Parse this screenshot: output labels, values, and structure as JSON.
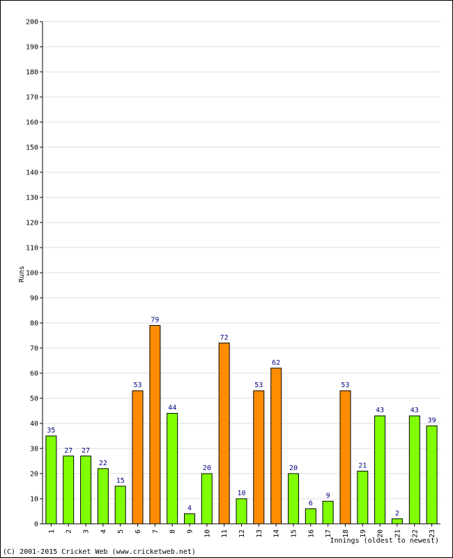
{
  "chart_data": {
    "type": "bar",
    "xlabel": "Innings (oldest to newest)",
    "ylabel": "Runs",
    "ylim": [
      0,
      200
    ],
    "ytick_step": 10,
    "grid": true,
    "categories": [
      "1",
      "2",
      "3",
      "4",
      "5",
      "6",
      "7",
      "8",
      "9",
      "10",
      "11",
      "12",
      "13",
      "14",
      "15",
      "16",
      "17",
      "18",
      "19",
      "20",
      "21",
      "22",
      "23"
    ],
    "values": [
      35,
      27,
      27,
      22,
      15,
      53,
      79,
      44,
      4,
      20,
      72,
      10,
      53,
      62,
      20,
      6,
      9,
      53,
      21,
      43,
      2,
      43,
      39
    ],
    "highlight_threshold": 50,
    "colors": {
      "normal": "#80ff00",
      "fifty_plus": "#ff8c00",
      "bar_edge": "#000000",
      "data_label": "#000080",
      "grid": "#dcdcdc"
    }
  },
  "footer": {
    "copyright": "(C) 2001-2015 Cricket Web (www.cricketweb.net)"
  }
}
